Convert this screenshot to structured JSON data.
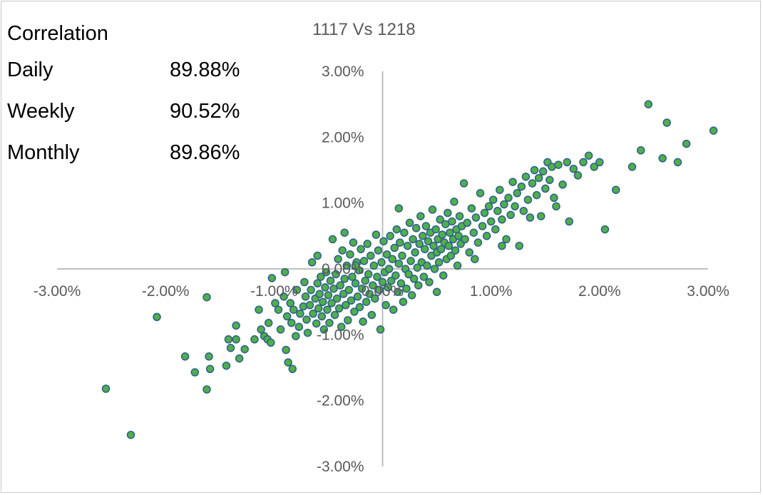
{
  "stats": {
    "heading": "Correlation",
    "rows": [
      {
        "label": "Daily",
        "value": "89.88%"
      },
      {
        "label": "Weekly",
        "value": "90.52%"
      },
      {
        "label": "Monthly",
        "value": "89.86%"
      }
    ]
  },
  "chart_data": {
    "type": "scatter",
    "title": "1117 Vs 1218",
    "xlabel": "",
    "ylabel": "",
    "xlim": [
      -3.0,
      3.0
    ],
    "ylim": [
      -3.0,
      3.0
    ],
    "unit": "%",
    "grid": false,
    "legend": "none",
    "x_ticks": [
      "-3.00%",
      "-2.00%",
      "-1.00%",
      "0.00%",
      "1.00%",
      "2.00%",
      "3.00%"
    ],
    "y_ticks": [
      "3.00%",
      "2.00%",
      "1.00%",
      "0.00%",
      "-1.00%",
      "-2.00%",
      "-3.00%"
    ],
    "colors": {
      "marker_fill": "#4faf4a",
      "marker_edge": "#2e5e8c",
      "axis": "#bfbfbf"
    },
    "series": [
      {
        "points": [
          [
            -2.55,
            -1.82
          ],
          [
            -2.32,
            -2.52
          ],
          [
            -2.08,
            -0.73
          ],
          [
            -1.82,
            -1.33
          ],
          [
            -1.73,
            -1.57
          ],
          [
            -1.62,
            -0.43
          ],
          [
            -1.62,
            -1.83
          ],
          [
            -1.6,
            -1.33
          ],
          [
            -1.59,
            -1.52
          ],
          [
            -1.44,
            -1.47
          ],
          [
            -1.42,
            -1.07
          ],
          [
            -1.4,
            -1.2
          ],
          [
            -1.35,
            -0.86
          ],
          [
            -1.35,
            -1.07
          ],
          [
            -1.32,
            -1.36
          ],
          [
            -1.27,
            -1.22
          ],
          [
            -1.18,
            -1.07
          ],
          [
            -1.14,
            -0.62
          ],
          [
            -1.12,
            -0.92
          ],
          [
            -1.09,
            -1.02
          ],
          [
            -1.06,
            -1.07
          ],
          [
            -1.05,
            -0.82
          ],
          [
            -1.03,
            -1.12
          ],
          [
            -1.02,
            -0.14
          ],
          [
            -0.99,
            -0.52
          ],
          [
            -0.96,
            -0.62
          ],
          [
            -0.94,
            -0.92
          ],
          [
            -0.91,
            -0.42
          ],
          [
            -0.89,
            -1.23
          ],
          [
            -0.88,
            -0.72
          ],
          [
            -0.87,
            -1.42
          ],
          [
            -0.85,
            -0.52
          ],
          [
            -0.84,
            -0.82
          ],
          [
            -0.83,
            -1.52
          ],
          [
            -0.82,
            -0.62
          ],
          [
            -0.8,
            -1.02
          ],
          [
            -0.79,
            -0.32
          ],
          [
            -0.77,
            -0.88
          ],
          [
            -0.76,
            -0.68
          ],
          [
            -0.73,
            -0.57
          ],
          [
            -0.72,
            -0.2
          ],
          [
            -0.71,
            -0.42
          ],
          [
            -0.7,
            -0.77
          ],
          [
            -0.69,
            -0.97
          ],
          [
            -0.67,
            -0.55
          ],
          [
            -0.66,
            -0.32
          ],
          [
            -0.65,
            0.1
          ],
          [
            -0.64,
            -0.68
          ],
          [
            -0.62,
            -0.45
          ],
          [
            -0.61,
            -0.83
          ],
          [
            -0.6,
            -0.22
          ],
          [
            -0.59,
            -0.6
          ],
          [
            -0.58,
            -0.38
          ],
          [
            -0.57,
            -0.12
          ],
          [
            -0.56,
            -0.72
          ],
          [
            -0.55,
            -0.5
          ],
          [
            -0.54,
            -0.92
          ],
          [
            -0.53,
            -0.28
          ],
          [
            -0.52,
            -0.05
          ],
          [
            -0.51,
            -0.62
          ],
          [
            -0.5,
            -0.4
          ],
          [
            -0.49,
            -0.82
          ],
          [
            -0.48,
            -0.18
          ],
          [
            -0.47,
            -0.52
          ],
          [
            -0.46,
            0.45
          ],
          [
            -0.45,
            -0.3
          ],
          [
            -0.44,
            -0.7
          ],
          [
            -0.43,
            -0.08
          ],
          [
            -0.42,
            -0.45
          ],
          [
            -0.41,
            0.15
          ],
          [
            -0.4,
            -0.6
          ],
          [
            -0.39,
            -0.25
          ],
          [
            -0.38,
            -0.88
          ],
          [
            -0.37,
            0.28
          ],
          [
            -0.36,
            -0.38
          ],
          [
            -0.35,
            -0.15
          ],
          [
            -0.34,
            -0.55
          ],
          [
            -0.33,
            0.05
          ],
          [
            -0.32,
            -0.78
          ],
          [
            -0.31,
            -0.32
          ],
          [
            -0.3,
            0.22
          ],
          [
            -0.29,
            -0.48
          ],
          [
            -0.28,
            -0.12
          ],
          [
            -0.27,
            0.4
          ],
          [
            -0.26,
            -0.65
          ],
          [
            -0.25,
            -0.22
          ],
          [
            -0.24,
            0.1
          ],
          [
            -0.23,
            -0.42
          ],
          [
            -0.22,
            -0.02
          ],
          [
            -0.21,
            -0.58
          ],
          [
            -0.2,
            0.3
          ],
          [
            -0.19,
            -0.3
          ],
          [
            -0.18,
            -0.8
          ],
          [
            -0.17,
            0.12
          ],
          [
            -0.16,
            -0.18
          ],
          [
            -0.15,
            -0.5
          ],
          [
            -0.14,
            0.38
          ],
          [
            -0.13,
            -0.08
          ],
          [
            -0.12,
            -0.38
          ],
          [
            -0.11,
            0.2
          ],
          [
            -0.1,
            -0.7
          ],
          [
            -0.09,
            -0.25
          ],
          [
            -0.08,
            0.05
          ],
          [
            -0.07,
            -0.45
          ],
          [
            -0.06,
            0.52
          ],
          [
            -0.05,
            -0.12
          ],
          [
            -0.04,
            0.28
          ],
          [
            -0.03,
            -0.32
          ],
          [
            -0.02,
            -0.92
          ],
          [
            -0.01,
            0.1
          ],
          [
            0.0,
            -0.2
          ],
          [
            0.01,
            0.42
          ],
          [
            0.02,
            -0.05
          ],
          [
            0.03,
            -0.55
          ],
          [
            0.04,
            0.22
          ],
          [
            0.05,
            -0.28
          ],
          [
            0.06,
            0.0
          ],
          [
            0.07,
            0.5
          ],
          [
            0.08,
            -0.18
          ],
          [
            0.09,
            0.15
          ],
          [
            0.1,
            -0.62
          ],
          [
            0.11,
            0.32
          ],
          [
            0.12,
            -0.1
          ],
          [
            0.13,
            0.6
          ],
          [
            0.14,
            -0.35
          ],
          [
            0.15,
            0.08
          ],
          [
            0.16,
            0.4
          ],
          [
            0.17,
            -0.22
          ],
          [
            0.18,
            0.2
          ],
          [
            0.19,
            -0.5
          ],
          [
            0.2,
            0.55
          ],
          [
            0.21,
            0.0
          ],
          [
            0.22,
            -0.3
          ],
          [
            0.23,
            0.35
          ],
          [
            0.24,
            -0.08
          ],
          [
            0.25,
            0.7
          ],
          [
            0.26,
            0.12
          ],
          [
            0.27,
            -0.4
          ],
          [
            0.28,
            0.45
          ],
          [
            0.29,
            -0.15
          ],
          [
            0.3,
            0.25
          ],
          [
            0.31,
            0.62
          ],
          [
            0.32,
            0.02
          ],
          [
            0.33,
            -0.25
          ],
          [
            0.34,
            0.38
          ],
          [
            0.35,
            0.8
          ],
          [
            0.36,
            0.1
          ],
          [
            0.37,
            0.5
          ],
          [
            0.38,
            -0.12
          ],
          [
            0.39,
            0.3
          ],
          [
            0.4,
            0.65
          ],
          [
            0.41,
            0.05
          ],
          [
            0.42,
            0.42
          ],
          [
            0.43,
            -0.2
          ],
          [
            0.44,
            0.55
          ],
          [
            0.45,
            0.2
          ],
          [
            0.46,
            0.9
          ],
          [
            0.47,
            0.35
          ],
          [
            0.48,
            0.0
          ],
          [
            0.49,
            0.6
          ],
          [
            0.5,
            0.25
          ],
          [
            0.51,
            0.45
          ],
          [
            0.52,
            0.1
          ],
          [
            0.53,
            0.75
          ],
          [
            0.54,
            0.3
          ],
          [
            0.55,
            0.52
          ],
          [
            0.56,
            -0.1
          ],
          [
            0.57,
            0.4
          ],
          [
            0.58,
            0.68
          ],
          [
            0.59,
            0.15
          ],
          [
            0.6,
            0.85
          ],
          [
            0.61,
            0.35
          ],
          [
            0.62,
            0.55
          ],
          [
            0.63,
            0.2
          ],
          [
            0.64,
            0.72
          ],
          [
            0.65,
            0.45
          ],
          [
            0.66,
            1.02
          ],
          [
            0.67,
            0.28
          ],
          [
            0.68,
            0.6
          ],
          [
            0.69,
            0.05
          ],
          [
            0.7,
            0.5
          ],
          [
            0.71,
            0.8
          ],
          [
            0.72,
            0.38
          ],
          [
            0.73,
            0.65
          ],
          [
            0.75,
            1.3
          ],
          [
            0.76,
            0.45
          ],
          [
            0.78,
            0.7
          ],
          [
            0.8,
            0.25
          ],
          [
            0.82,
            0.92
          ],
          [
            0.84,
            0.55
          ],
          [
            0.86,
            0.78
          ],
          [
            0.88,
            0.4
          ],
          [
            0.9,
            1.15
          ],
          [
            0.92,
            0.65
          ],
          [
            0.94,
            0.85
          ],
          [
            0.96,
            0.5
          ],
          [
            0.98,
            0.95
          ],
          [
            1.0,
            0.72
          ],
          [
            1.02,
            1.05
          ],
          [
            1.04,
            0.6
          ],
          [
            1.06,
            0.88
          ],
          [
            1.08,
            1.2
          ],
          [
            1.1,
            0.75
          ],
          [
            1.12,
            0.98
          ],
          [
            1.14,
            0.45
          ],
          [
            1.16,
            1.08
          ],
          [
            1.18,
            0.82
          ],
          [
            1.2,
            1.32
          ],
          [
            1.22,
            0.95
          ],
          [
            1.24,
            1.15
          ],
          [
            1.26,
            0.35
          ],
          [
            1.28,
            1.25
          ],
          [
            1.3,
            0.88
          ],
          [
            1.32,
            1.4
          ],
          [
            1.34,
            1.05
          ],
          [
            1.36,
            0.78
          ],
          [
            1.38,
            1.3
          ],
          [
            1.4,
            1.5
          ],
          [
            1.42,
            1.12
          ],
          [
            1.44,
            1.38
          ],
          [
            1.46,
            0.8
          ],
          [
            1.48,
            1.48
          ],
          [
            1.5,
            1.22
          ],
          [
            1.52,
            1.62
          ],
          [
            1.54,
            1.35
          ],
          [
            1.56,
            1.55
          ],
          [
            1.58,
            1.08
          ],
          [
            1.62,
            1.58
          ],
          [
            1.66,
            1.28
          ],
          [
            1.7,
            1.62
          ],
          [
            1.72,
            0.72
          ],
          [
            1.76,
            1.52
          ],
          [
            1.8,
            1.42
          ],
          [
            1.85,
            1.62
          ],
          [
            1.9,
            1.72
          ],
          [
            1.95,
            1.55
          ],
          [
            2.0,
            1.62
          ],
          [
            2.15,
            1.2
          ],
          [
            2.3,
            1.55
          ],
          [
            2.38,
            1.8
          ],
          [
            2.45,
            2.5
          ],
          [
            2.58,
            1.68
          ],
          [
            2.62,
            2.22
          ],
          [
            2.72,
            1.62
          ],
          [
            2.8,
            1.9
          ],
          [
            3.05,
            2.1
          ],
          [
            -0.9,
            -0.05
          ],
          [
            -0.6,
            0.2
          ],
          [
            -0.25,
            0.05
          ],
          [
            0.15,
            0.92
          ],
          [
            0.5,
            -0.35
          ],
          [
            0.85,
            0.15
          ],
          [
            1.1,
            0.35
          ],
          [
            1.6,
            0.95
          ],
          [
            2.05,
            0.6
          ],
          [
            -0.35,
            0.55
          ]
        ]
      }
    ]
  }
}
